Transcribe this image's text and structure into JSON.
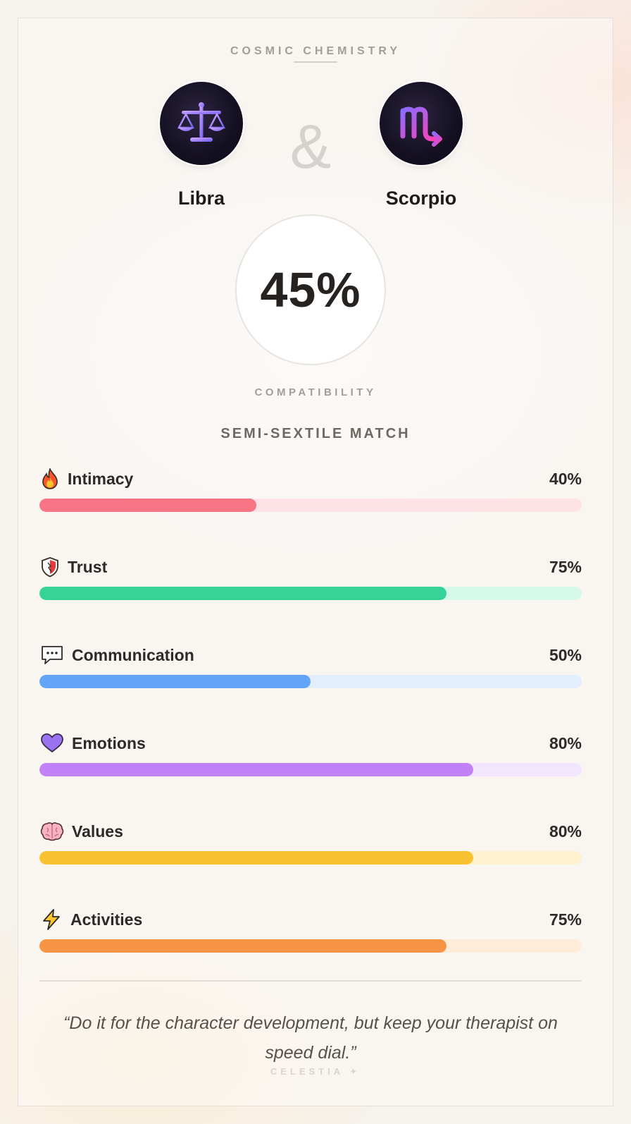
{
  "header": {
    "title": "COSMIC CHEMISTRY"
  },
  "signs": {
    "left": {
      "name": "Libra",
      "icon": "libra-scales-icon",
      "accent": "#7a6cf0"
    },
    "right": {
      "name": "Scorpio",
      "icon": "scorpio-glyph-icon",
      "accent": "#e23ec7"
    },
    "connector": "&"
  },
  "score": {
    "value": "45%",
    "label": "COMPATIBILITY",
    "match_type": "SEMI-SEXTILE MATCH"
  },
  "metrics": [
    {
      "name": "Intimacy",
      "value": "40%",
      "fraction": 0.4,
      "icon": "fire-icon",
      "color": "#f87585",
      "track": "#fde3e6"
    },
    {
      "name": "Trust",
      "value": "75%",
      "fraction": 0.75,
      "icon": "shield-icon",
      "color": "#36d399",
      "track": "#d6f9ea"
    },
    {
      "name": "Communication",
      "value": "50%",
      "fraction": 0.5,
      "icon": "speech-bubble-icon",
      "color": "#62a5f6",
      "track": "#e2edfd"
    },
    {
      "name": "Emotions",
      "value": "80%",
      "fraction": 0.8,
      "icon": "heart-icon",
      "color": "#c282f7",
      "track": "#f1e6fd"
    },
    {
      "name": "Values",
      "value": "80%",
      "fraction": 0.8,
      "icon": "brain-icon",
      "color": "#f8c12f",
      "track": "#fdf1cf"
    },
    {
      "name": "Activities",
      "value": "75%",
      "fraction": 0.75,
      "icon": "lightning-icon",
      "color": "#f89446",
      "track": "#feecd9"
    }
  ],
  "quote": "“Do it for the character development, but keep your therapist on speed dial.”",
  "brand": "CELESTIA ✦"
}
